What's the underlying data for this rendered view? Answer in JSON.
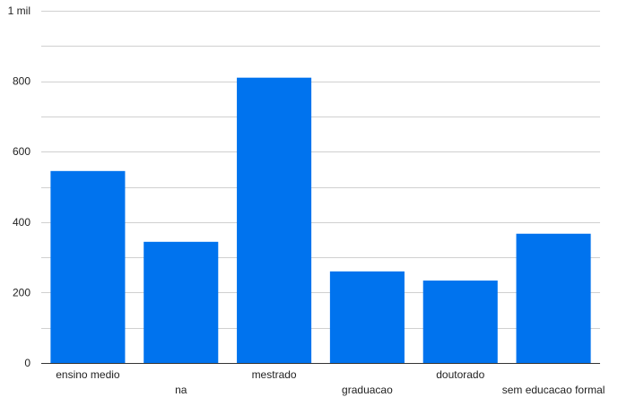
{
  "chart_data": {
    "type": "bar",
    "categories": [
      "ensino medio",
      "na",
      "mestrado",
      "graduacao",
      "doutorado",
      "sem educacao formal"
    ],
    "values": [
      545,
      344,
      810,
      260,
      234,
      367
    ],
    "ylim": [
      0,
      1000
    ],
    "y_ticks": [
      0,
      200,
      400,
      600,
      800,
      1000
    ],
    "y_tick_labels": [
      "0",
      "200",
      "400",
      "600",
      "800",
      "1 mil"
    ],
    "grid": true,
    "colors": {
      "bar": "#0073ee",
      "grid": "#d0d0d0",
      "axis": "#333333"
    }
  }
}
